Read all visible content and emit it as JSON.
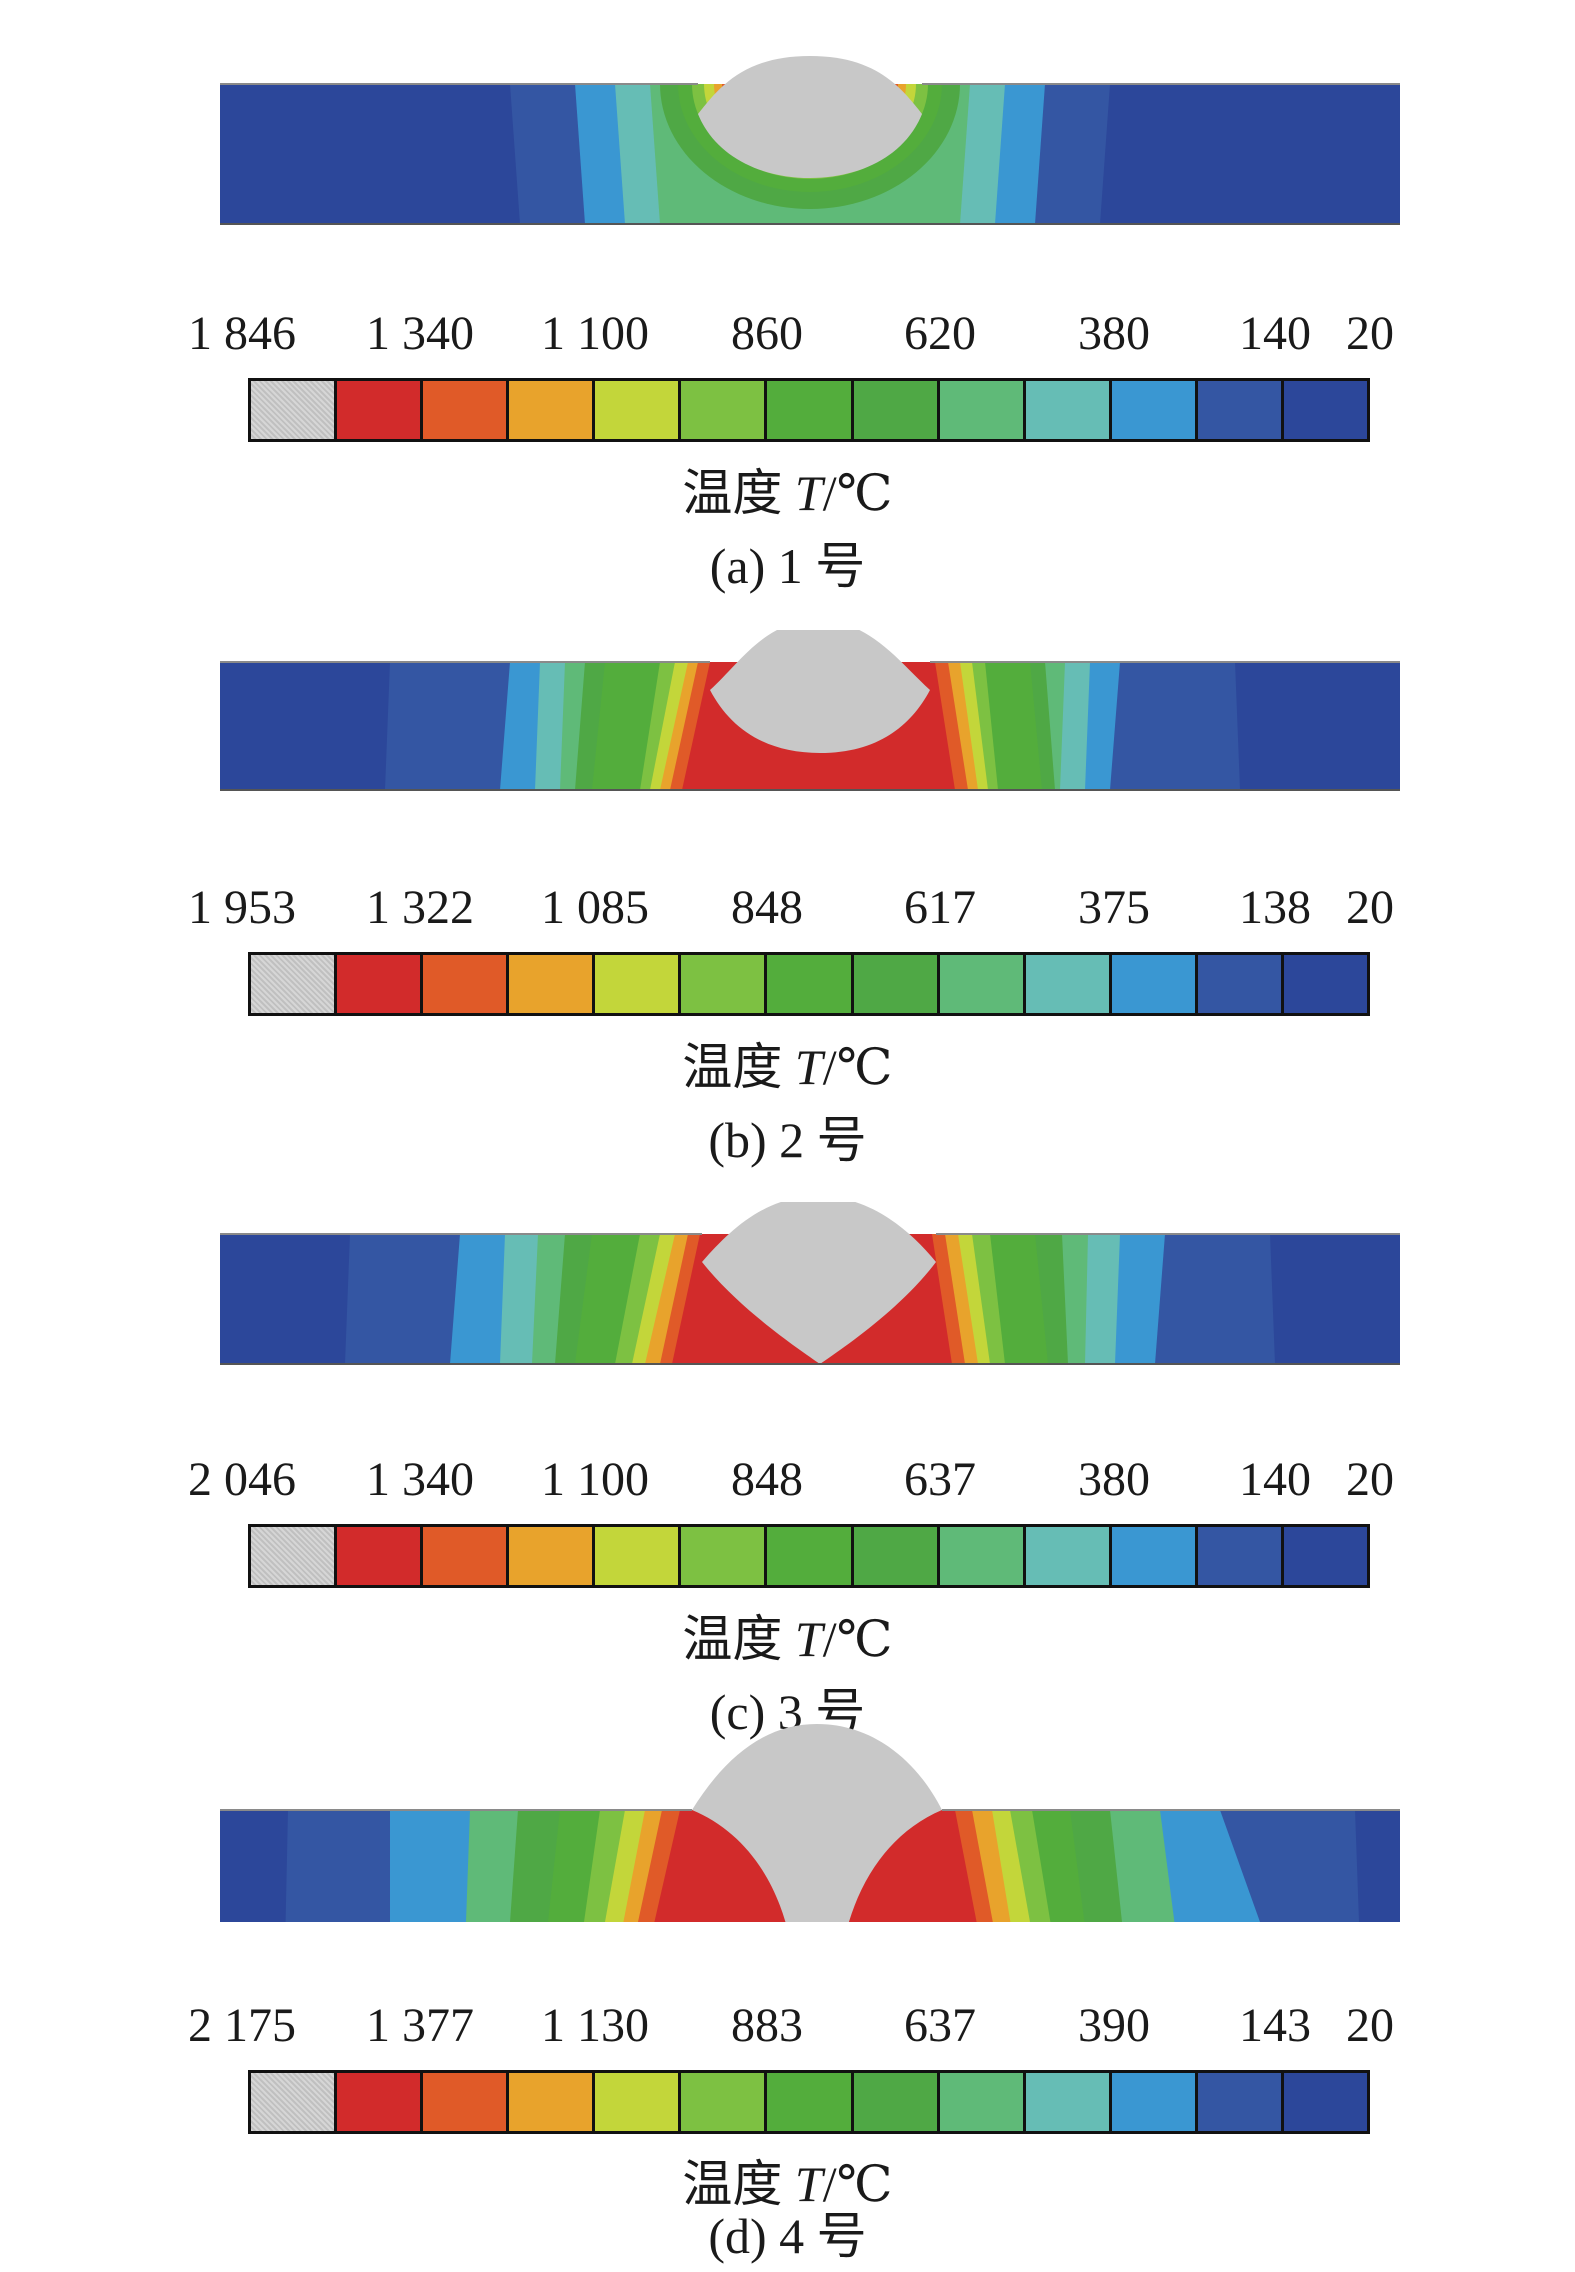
{
  "legend_colors": [
    "#c8c8c8",
    "#d22b2b",
    "#e05a28",
    "#e8a32c",
    "#c3d63a",
    "#7dc142",
    "#53ad3c",
    "#4fa845",
    "#5fba78",
    "#66bdb5",
    "#3a97d2",
    "#3456a3",
    "#2c479a"
  ],
  "panels": [
    {
      "caption": "(a) 1 号",
      "unit_label": {
        "prefix": "温度 ",
        "symbol": "T",
        "suffix": "/℃"
      },
      "ticks": [
        "1 846",
        "1 340",
        "1 100",
        "860",
        "620",
        "380",
        "140",
        "20"
      ]
    },
    {
      "caption": "(b) 2 号",
      "unit_label": {
        "prefix": "温度 ",
        "symbol": "T",
        "suffix": "/℃"
      },
      "ticks": [
        "1 953",
        "1 322",
        "1 085",
        "848",
        "617",
        "375",
        "138",
        "20"
      ]
    },
    {
      "caption": "(c) 3 号",
      "unit_label": {
        "prefix": "温度 ",
        "symbol": "T",
        "suffix": "/℃"
      },
      "ticks": [
        "2 046",
        "1 340",
        "1 100",
        "848",
        "637",
        "380",
        "140",
        "20"
      ]
    },
    {
      "caption": "(d) 4 号",
      "unit_label": {
        "prefix": "温度 ",
        "symbol": "T",
        "suffix": "/℃"
      },
      "ticks": [
        "2 175",
        "1 377",
        "1 130",
        "883",
        "637",
        "390",
        "143",
        "20"
      ]
    }
  ]
}
